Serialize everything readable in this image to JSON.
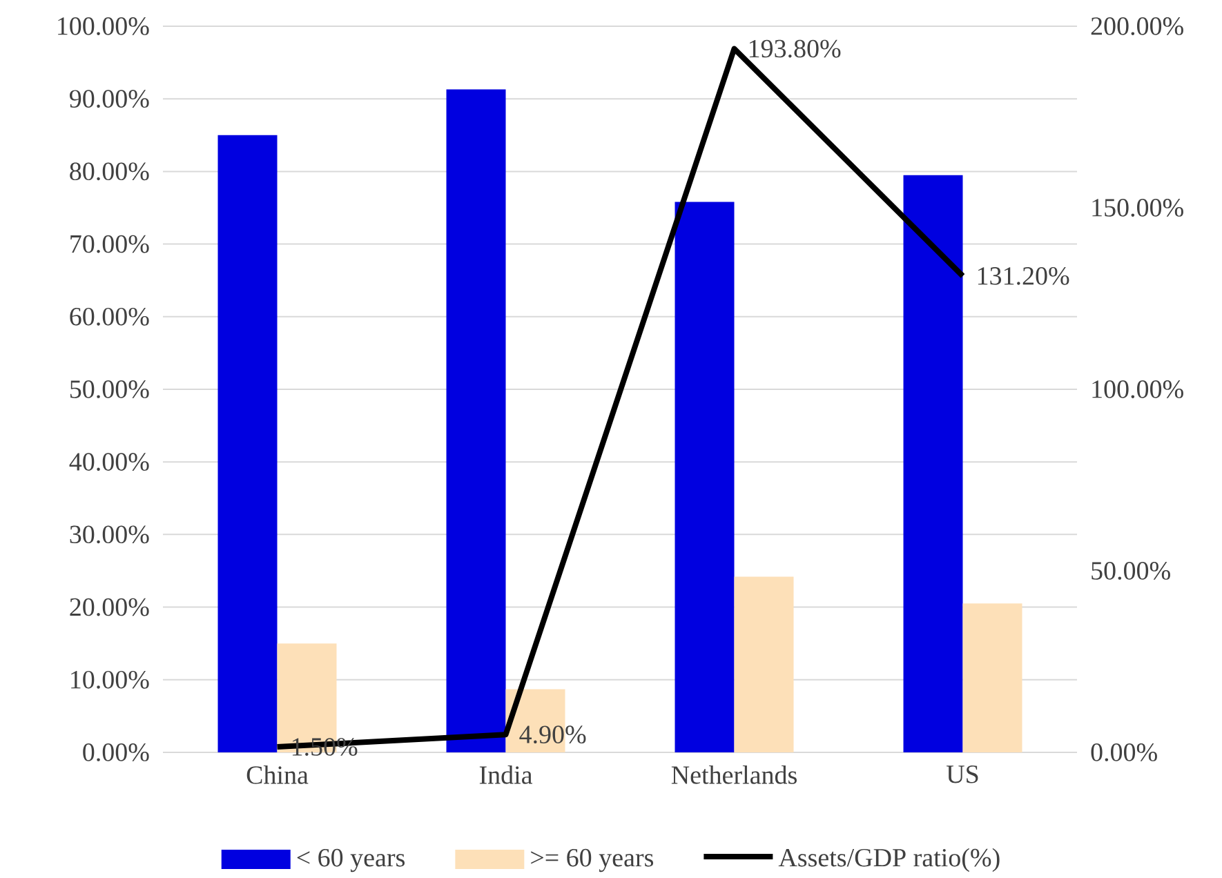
{
  "chart_data": {
    "type": "bar",
    "categories": [
      "China",
      "India",
      "Netherlands",
      "US"
    ],
    "series": [
      {
        "name": "< 60 years",
        "color": "#0000e0",
        "values": [
          85.0,
          91.3,
          75.8,
          79.5
        ]
      },
      {
        "name": ">= 60 years",
        "color": "#fde0b8",
        "values": [
          15.0,
          8.7,
          24.2,
          20.5
        ]
      },
      {
        "name": "Assets/GDP ratio(%)",
        "type": "line",
        "axis": "y2",
        "color": "#000000",
        "line_style": "solid",
        "values": [
          1.5,
          4.9,
          193.8,
          131.2
        ],
        "value_labels": [
          "1.50%",
          "4.90%",
          "193.80%",
          "131.20%"
        ]
      }
    ],
    "ylim": [
      0,
      100
    ],
    "yticks": [
      {
        "value": 0,
        "label": "0.00%"
      },
      {
        "value": 10,
        "label": "10.00%"
      },
      {
        "value": 20,
        "label": "20.00%"
      },
      {
        "value": 30,
        "label": "30.00%"
      },
      {
        "value": 40,
        "label": "40.00%"
      },
      {
        "value": 50,
        "label": "50.00%"
      },
      {
        "value": 60,
        "label": "60.00%"
      },
      {
        "value": 70,
        "label": "70.00%"
      },
      {
        "value": 80,
        "label": "80.00%"
      },
      {
        "value": 90,
        "label": "90.00%"
      },
      {
        "value": 100,
        "label": "100.00%"
      }
    ],
    "y2lim": [
      0,
      200
    ],
    "y2ticks": [
      {
        "value": 0,
        "label": "0.00%"
      },
      {
        "value": 50,
        "label": "50.00%"
      },
      {
        "value": 100,
        "label": "100.00%"
      },
      {
        "value": 150,
        "label": "150.00%"
      },
      {
        "value": 200,
        "label": "200.00%"
      }
    ],
    "grid": "y",
    "legend": "bottom"
  }
}
